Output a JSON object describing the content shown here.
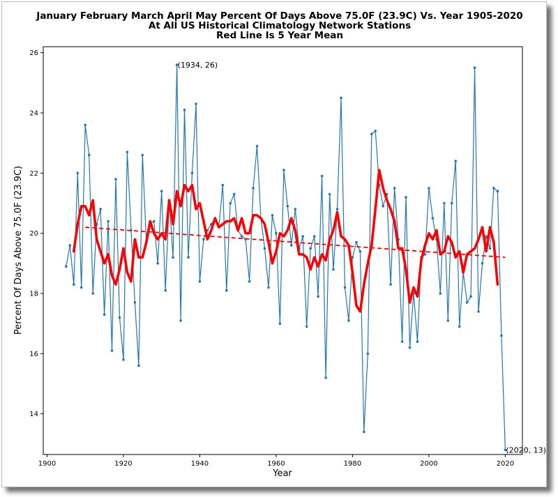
{
  "chart_data": {
    "type": "line",
    "title_lines": [
      "January February March April May Percent Of Days Above 75.0F (23.9C) Vs. Year 1905-2020",
      "At All US Historical Climatology Network Stations",
      "Red Line Is 5 Year Mean"
    ],
    "xlabel": "Year",
    "ylabel": "Percent Of Days Above 75.0F (23.9C)",
    "xlim": [
      1899,
      2024.5
    ],
    "ylim": [
      12.65,
      26.2
    ],
    "xticks": [
      1900,
      1920,
      1940,
      1960,
      1980,
      2000,
      2020
    ],
    "yticks": [
      14,
      16,
      18,
      20,
      22,
      24,
      26
    ],
    "grid": false,
    "colors": {
      "series": "#1f77b4",
      "mean": "#ff0000",
      "trend": "#ff0000"
    },
    "series": [
      {
        "x": [
          1905,
          1906,
          1907,
          1908,
          1909,
          1910,
          1911,
          1912,
          1913,
          1914,
          1915,
          1916,
          1917,
          1918,
          1919,
          1920,
          1921,
          1922,
          1923,
          1924,
          1925,
          1926,
          1927,
          1928,
          1929,
          1930,
          1931,
          1932,
          1933,
          1934,
          1935,
          1936,
          1937,
          1938,
          1939,
          1940,
          1941,
          1942,
          1943,
          1944,
          1945,
          1946,
          1947,
          1948,
          1949,
          1950,
          1951,
          1952,
          1953,
          1954,
          1955,
          1956,
          1957,
          1958,
          1959,
          1960,
          1961,
          1962,
          1963,
          1964,
          1965,
          1966,
          1967,
          1968,
          1969,
          1970,
          1971,
          1972,
          1973,
          1974,
          1975,
          1976,
          1977,
          1978,
          1979,
          1980,
          1981,
          1982,
          1983,
          1984,
          1985,
          1986,
          1987,
          1988,
          1989,
          1990,
          1991,
          1992,
          1993,
          1994,
          1995,
          1996,
          1997,
          1998,
          1999,
          2000,
          2001,
          2002,
          2003,
          2004,
          2005,
          2006,
          2007,
          2008,
          2009,
          2010,
          2011,
          2012,
          2013,
          2014,
          2015,
          2016,
          2017,
          2018,
          2019,
          2020
        ],
        "values": [
          18.9,
          19.6,
          18.3,
          22.0,
          18.2,
          23.6,
          22.6,
          18.0,
          20.3,
          20.8,
          17.3,
          20.4,
          16.1,
          21.8,
          17.2,
          15.8,
          22.7,
          20.1,
          17.7,
          15.6,
          22.6,
          19.7,
          20.3,
          20.4,
          19.0,
          21.4,
          18.1,
          21.1,
          19.2,
          25.6,
          17.1,
          24.1,
          19.2,
          22.0,
          24.3,
          18.4,
          19.8,
          20.1,
          20.3,
          20.5,
          20.2,
          21.6,
          18.1,
          21.0,
          21.3,
          20.1,
          19.9,
          19.8,
          18.4,
          21.5,
          22.9,
          20.5,
          19.5,
          18.2,
          20.6,
          20.0,
          17.0,
          22.1,
          20.9,
          19.6,
          20.8,
          19.5,
          19.9,
          16.9,
          19.5,
          19.9,
          17.9,
          21.9,
          15.2,
          21.3,
          18.8,
          20.8,
          24.5,
          18.2,
          17.1,
          19.2,
          19.7,
          19.4,
          13.4,
          16.0,
          23.3,
          23.4,
          21.6,
          20.9,
          21.3,
          18.3,
          21.5,
          19.8,
          16.4,
          21.2,
          16.2,
          18.0,
          16.4,
          19.2,
          19.3,
          21.5,
          20.5,
          19.8,
          18.0,
          21.0,
          17.1,
          21.0,
          22.4,
          16.9,
          18.7,
          17.7,
          17.9,
          25.5,
          17.4,
          19.0,
          19.9,
          19.5,
          21.5,
          21.4,
          16.6,
          12.8
        ]
      },
      {
        "x": [
          1907,
          1908,
          1909,
          1910,
          1911,
          1912,
          1913,
          1914,
          1915,
          1916,
          1917,
          1918,
          1919,
          1920,
          1921,
          1922,
          1923,
          1924,
          1925,
          1926,
          1927,
          1928,
          1929,
          1930,
          1931,
          1932,
          1933,
          1934,
          1935,
          1936,
          1937,
          1938,
          1939,
          1940,
          1941,
          1942,
          1943,
          1944,
          1945,
          1946,
          1947,
          1948,
          1949,
          1950,
          1951,
          1952,
          1953,
          1954,
          1955,
          1956,
          1957,
          1958,
          1959,
          1960,
          1961,
          1962,
          1963,
          1964,
          1965,
          1966,
          1967,
          1968,
          1969,
          1970,
          1971,
          1972,
          1973,
          1974,
          1975,
          1976,
          1977,
          1978,
          1979,
          1980,
          1981,
          1982,
          1983,
          1984,
          1985,
          1986,
          1987,
          1988,
          1989,
          1990,
          1991,
          1992,
          1993,
          1994,
          1995,
          1996,
          1997,
          1998,
          1999,
          2000,
          2001,
          2002,
          2003,
          2004,
          2005,
          2006,
          2007,
          2008,
          2009,
          2010,
          2011,
          2012,
          2013,
          2014,
          2015,
          2016,
          2017,
          2018
        ],
        "values": [
          19.4,
          20.3,
          20.9,
          20.9,
          20.6,
          21.1,
          19.8,
          19.4,
          19.0,
          19.3,
          18.6,
          18.3,
          18.8,
          19.5,
          18.7,
          18.4,
          19.8,
          19.2,
          19.2,
          19.7,
          20.4,
          20.0,
          19.8,
          20.0,
          19.8,
          21.1,
          20.3,
          21.4,
          20.9,
          21.6,
          21.4,
          21.6,
          20.8,
          21.0,
          20.4,
          19.8,
          20.1,
          20.5,
          20.2,
          20.3,
          20.4,
          20.4,
          20.5,
          20.1,
          20.5,
          20.0,
          20.0,
          20.6,
          20.6,
          20.5,
          20.3,
          19.7,
          19.0,
          19.4,
          20.0,
          19.9,
          20.1,
          20.5,
          20.1,
          19.3,
          19.3,
          19.2,
          18.8,
          19.2,
          18.9,
          19.3,
          19.1,
          19.8,
          20.1,
          20.7,
          19.9,
          19.8,
          19.6,
          18.7,
          17.6,
          17.4,
          18.3,
          19.0,
          19.6,
          20.8,
          22.1,
          21.5,
          21.1,
          20.8,
          20.4,
          19.5,
          19.5,
          18.8,
          17.7,
          18.2,
          17.9,
          19.1,
          19.6,
          20.0,
          19.8,
          20.1,
          19.3,
          19.4,
          19.9,
          19.7,
          19.2,
          19.4,
          18.7,
          19.3,
          19.4,
          19.5,
          19.8,
          20.2,
          19.4,
          20.2,
          19.7,
          18.3
        ]
      }
    ],
    "trend": {
      "x": [
        1910,
        2020
      ],
      "y": [
        20.2,
        19.2
      ]
    },
    "annotations": [
      {
        "label": "(1934, 26)",
        "x": 1934,
        "y": 25.6
      },
      {
        "label": "(2020, 13)",
        "x": 2020,
        "y": 12.8
      }
    ]
  }
}
